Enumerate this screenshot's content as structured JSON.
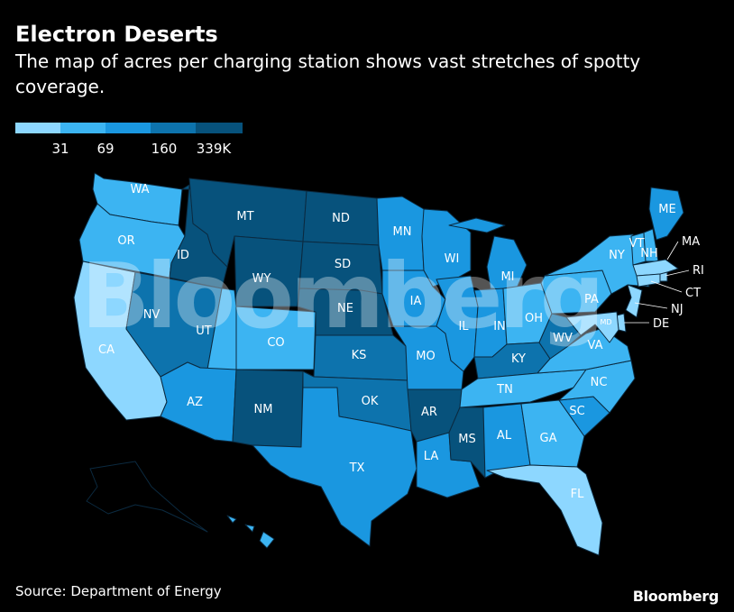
{
  "title": "Electron Deserts",
  "subtitle": "The map of acres per charging station shows vast stretches of spotty coverage.",
  "legend": {
    "colors": [
      "#8dd7ff",
      "#3cb4f2",
      "#1a97e0",
      "#0d73ad",
      "#07527c"
    ],
    "ticks": [
      "31",
      "69",
      "160",
      "339K"
    ]
  },
  "source": "Source: Department of Energy",
  "logo": "Bloomberg",
  "watermark": "Bloomberg",
  "states": {
    "WA": 2,
    "OR": 2,
    "CA": 1,
    "ID": 5,
    "NV": 4,
    "UT": 2,
    "AZ": 3,
    "MT": 5,
    "WY": 5,
    "CO": 2,
    "NM": 5,
    "ND": 5,
    "SD": 5,
    "NE": 5,
    "KS": 4,
    "OK": 4,
    "TX": 3,
    "MN": 3,
    "IA": 3,
    "MO": 3,
    "AR": 5,
    "LA": 3,
    "WI": 3,
    "IL": 3,
    "MI": 3,
    "IN": 3,
    "OH": 2,
    "KY": 4,
    "TN": 2,
    "MS": 5,
    "AL": 3,
    "GA": 2,
    "FL": 1,
    "SC": 3,
    "NC": 2,
    "VA": 2,
    "WV": 4,
    "PA": 2,
    "NY": 2,
    "ME": 3,
    "VT": 2,
    "NH": 2,
    "MA": 1,
    "RI": 1,
    "CT": 1,
    "NJ": 1,
    "DE": 1,
    "MD": 1,
    "AK": 0,
    "HI": 2
  },
  "callouts": [
    "MA",
    "RI",
    "CT",
    "NJ",
    "DE"
  ]
}
